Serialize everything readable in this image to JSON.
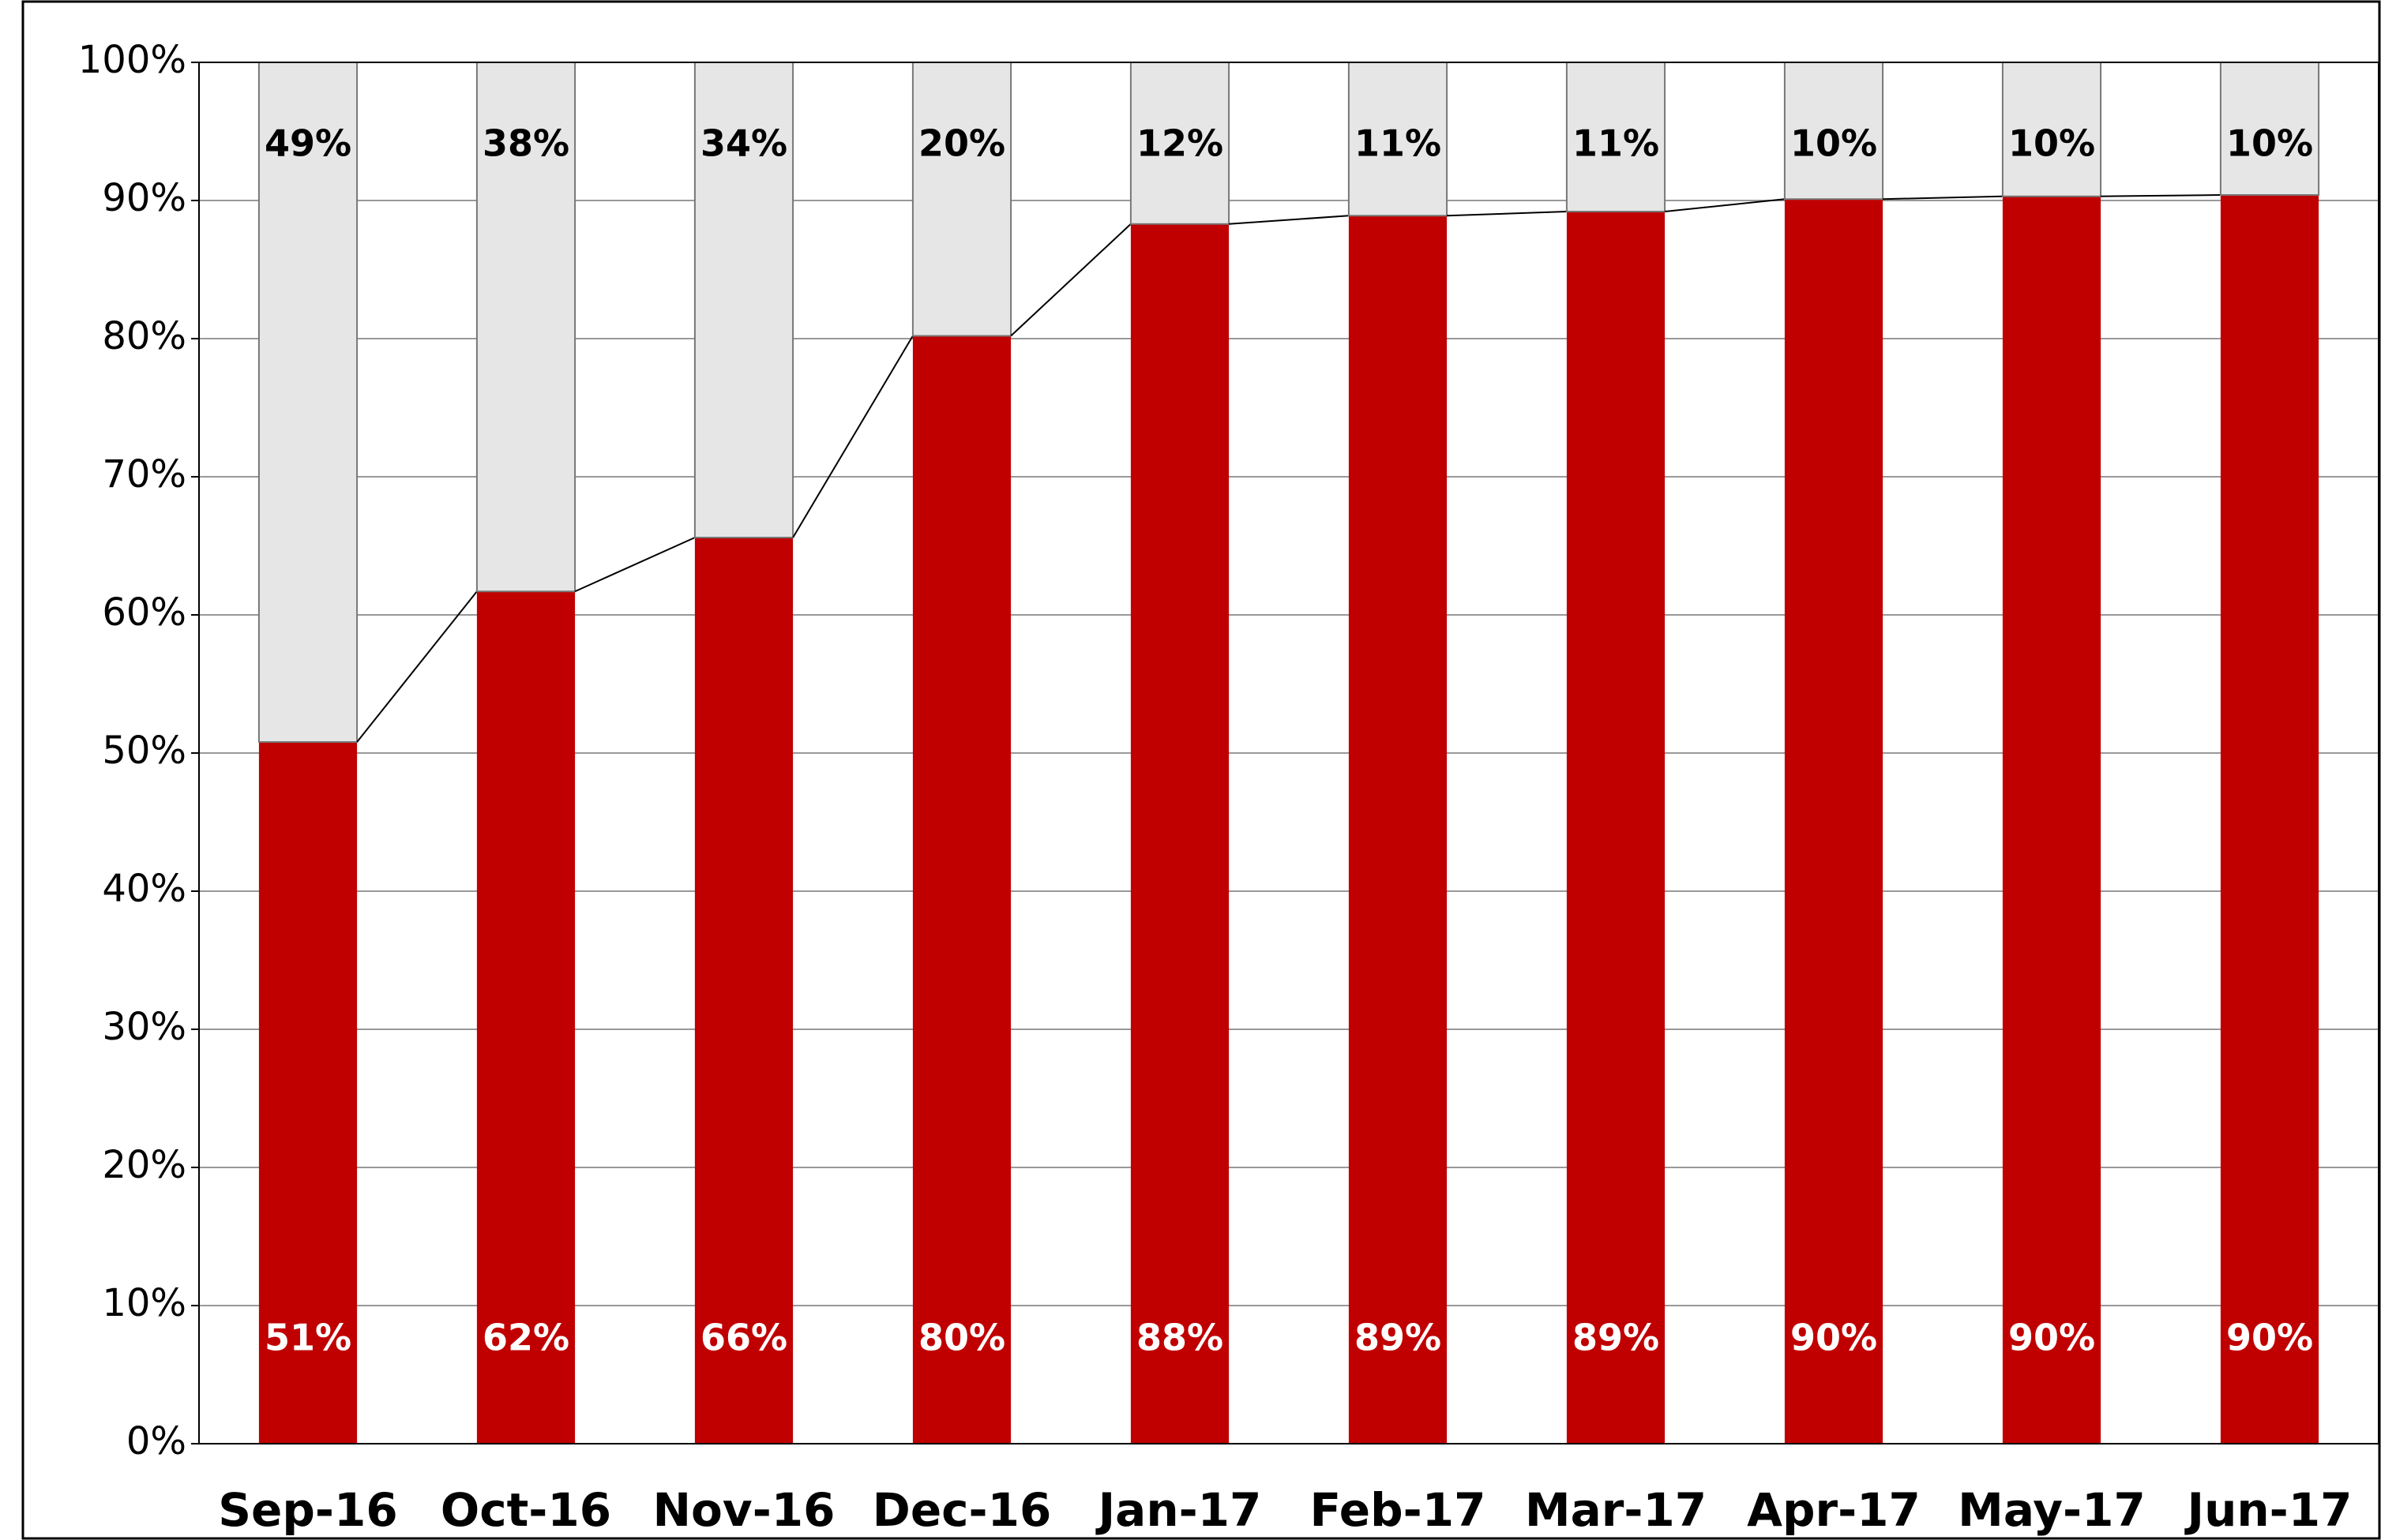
{
  "chart_data": {
    "type": "stacked_bar",
    "categories": [
      "Sep-16",
      "Oct-16",
      "Nov-16",
      "Dec-16",
      "Jan-17",
      "Feb-17",
      "Mar-17",
      "Apr-17",
      "May-17",
      "Jun-17"
    ],
    "series": [
      {
        "color": "#c00000",
        "values": [
          50.8,
          61.7,
          65.6,
          80.2,
          88.3,
          88.9,
          89.2,
          90.1,
          90.3,
          90.4
        ],
        "value_labels": [
          "51%",
          "62%",
          "66%",
          "80%",
          "88%",
          "89%",
          "89%",
          "90%",
          "90%",
          "90%"
        ]
      },
      {
        "color": "#e6e6e6",
        "values": [
          49.2,
          38.3,
          34.4,
          19.8,
          11.7,
          11.1,
          10.8,
          9.9,
          9.7,
          9.6
        ],
        "value_labels": [
          "49%",
          "38%",
          "34%",
          "20%",
          "12%",
          "11%",
          "11%",
          "10%",
          "10%",
          "10%"
        ]
      }
    ],
    "ylim": [
      0,
      100
    ],
    "yticks": [
      {
        "value": 0,
        "label": "0%"
      },
      {
        "value": 10,
        "label": "10%"
      },
      {
        "value": 20,
        "label": "20%"
      },
      {
        "value": 30,
        "label": "30%"
      },
      {
        "value": 40,
        "label": "40%"
      },
      {
        "value": 50,
        "label": "50%"
      },
      {
        "value": 60,
        "label": "60%"
      },
      {
        "value": 70,
        "label": "70%"
      },
      {
        "value": 80,
        "label": "80%"
      },
      {
        "value": 90,
        "label": "90%"
      },
      {
        "value": 100,
        "label": "100%"
      }
    ],
    "grid": true,
    "series_lines": true
  }
}
